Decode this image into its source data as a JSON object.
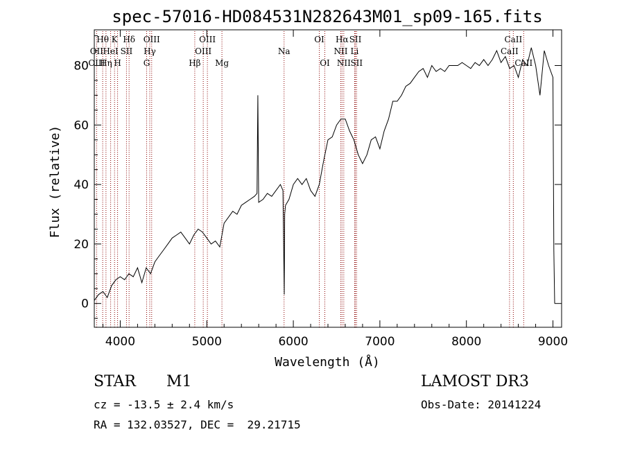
{
  "chart_data": {
    "type": "line",
    "title": "spec-57016-HD084531N282643M01_sp09-165.fits",
    "xlabel": "Wavelength (Å)",
    "ylabel": "Flux (relative)",
    "xlim": [
      3700,
      9100
    ],
    "ylim": [
      -8,
      92
    ],
    "x_ticks": [
      4000,
      5000,
      6000,
      7000,
      8000,
      9000
    ],
    "y_ticks": [
      0,
      20,
      40,
      60,
      80
    ],
    "grid": false,
    "series": [
      {
        "name": "spectrum",
        "x": [
          3700,
          3750,
          3800,
          3850,
          3900,
          3950,
          4000,
          4050,
          4100,
          4150,
          4200,
          4250,
          4300,
          4350,
          4400,
          4450,
          4500,
          4550,
          4600,
          4650,
          4700,
          4750,
          4800,
          4850,
          4900,
          4950,
          5000,
          5050,
          5100,
          5150,
          5200,
          5250,
          5300,
          5350,
          5400,
          5450,
          5500,
          5550,
          5580,
          5590,
          5600,
          5650,
          5700,
          5750,
          5800,
          5850,
          5880,
          5895,
          5900,
          5910,
          5950,
          6000,
          6050,
          6100,
          6150,
          6200,
          6250,
          6300,
          6350,
          6400,
          6450,
          6500,
          6550,
          6600,
          6650,
          6700,
          6750,
          6800,
          6850,
          6900,
          6950,
          7000,
          7050,
          7100,
          7150,
          7200,
          7250,
          7300,
          7350,
          7400,
          7450,
          7500,
          7550,
          7600,
          7650,
          7700,
          7750,
          7800,
          7850,
          7900,
          7950,
          8000,
          8050,
          8100,
          8150,
          8200,
          8250,
          8300,
          8350,
          8400,
          8450,
          8500,
          8550,
          8600,
          8650,
          8700,
          8750,
          8800,
          8850,
          8900,
          8950,
          9000,
          9010,
          9020
        ],
        "y": [
          1,
          3,
          4,
          2,
          6,
          8,
          9,
          8,
          10,
          9,
          12,
          7,
          12,
          10,
          14,
          16,
          18,
          20,
          22,
          23,
          24,
          22,
          20,
          23,
          25,
          24,
          22,
          20,
          21,
          19,
          27,
          29,
          31,
          30,
          33,
          34,
          35,
          36,
          37,
          70,
          34,
          35,
          37,
          36,
          38,
          40,
          38,
          3,
          30,
          33,
          35,
          40,
          42,
          40,
          42,
          38,
          36,
          40,
          48,
          55,
          56,
          60,
          62,
          62,
          58,
          55,
          50,
          47,
          50,
          55,
          56,
          52,
          58,
          62,
          68,
          68,
          70,
          73,
          74,
          76,
          78,
          79,
          76,
          80,
          78,
          79,
          78,
          80,
          80,
          80,
          81,
          80,
          79,
          81,
          80,
          82,
          80,
          82,
          85,
          81,
          83,
          79,
          80,
          76,
          82,
          80,
          86,
          80,
          70,
          85,
          80,
          76,
          18,
          0
        ]
      }
    ],
    "lines": [
      {
        "name": "Hθ",
        "wl": 3797,
        "row": 0
      },
      {
        "name": "OII",
        "wl": 3727,
        "row": 1
      },
      {
        "name": "OIII",
        "wl": 3727,
        "row": 2
      },
      {
        "name": "Hη",
        "wl": 3835,
        "row": 2
      },
      {
        "name": "HeI",
        "wl": 3889,
        "row": 1
      },
      {
        "name": "K",
        "wl": 3934,
        "row": 0
      },
      {
        "name": "H",
        "wl": 3969,
        "row": 2
      },
      {
        "name": "SII",
        "wl": 4072,
        "row": 1
      },
      {
        "name": "Hδ",
        "wl": 4102,
        "row": 0
      },
      {
        "name": "OIII",
        "wl": 4363,
        "row": 0
      },
      {
        "name": "Hγ",
        "wl": 4341,
        "row": 1
      },
      {
        "name": "G",
        "wl": 4305,
        "row": 2
      },
      {
        "name": "Hβ",
        "wl": 4861,
        "row": 2
      },
      {
        "name": "OIII",
        "wl": 5007,
        "row": 0
      },
      {
        "name": "OIII",
        "wl": 4959,
        "row": 1
      },
      {
        "name": "Mg",
        "wl": 5175,
        "row": 2
      },
      {
        "name": "Na",
        "wl": 5893,
        "row": 1
      },
      {
        "name": "OI",
        "wl": 6300,
        "row": 0
      },
      {
        "name": "OI",
        "wl": 6364,
        "row": 2
      },
      {
        "name": "Hα",
        "wl": 6563,
        "row": 0
      },
      {
        "name": "SII",
        "wl": 6717,
        "row": 0
      },
      {
        "name": "NII",
        "wl": 6548,
        "row": 1
      },
      {
        "name": "Li",
        "wl": 6708,
        "row": 1
      },
      {
        "name": "NII",
        "wl": 6583,
        "row": 2
      },
      {
        "name": "SII",
        "wl": 6731,
        "row": 2
      },
      {
        "name": "CaII",
        "wl": 8542,
        "row": 0
      },
      {
        "name": "CaII",
        "wl": 8498,
        "row": 1
      },
      {
        "name": "CaII",
        "wl": 8662,
        "row": 2
      }
    ]
  },
  "info": {
    "object_class": "STAR",
    "subclass": "M1",
    "survey": "LAMOST DR3",
    "redshift": "cz = -13.5 ± 2.4 km/s",
    "obs_date": "Obs-Date: 20141224",
    "coords": "RA = 132.03527, DEC =  29.21715"
  },
  "colors": {
    "line_marker": "#8b0000",
    "spectrum": "#000000",
    "axes": "#000000"
  }
}
